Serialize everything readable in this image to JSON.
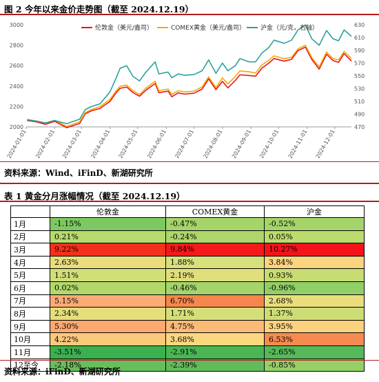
{
  "figure": {
    "title": "图 2  今年以来金价走势图（截至 2024.12.19）",
    "source": "资料来源：Wind、iFinD、新湖研究所"
  },
  "chart_data": {
    "type": "line",
    "x_ticks": [
      "2024-01-01",
      "2024-02-01",
      "2024-03-01",
      "2024-04-01",
      "2024-05-01",
      "2024-06-01",
      "2024-07-01",
      "2024-08-01",
      "2024-09-01",
      "2024-10-01",
      "2024-11-01",
      "2024-12-01"
    ],
    "left_axis": {
      "min": 2000,
      "max": 3000,
      "ticks": [
        2000,
        2200,
        2400,
        2600,
        2800,
        3000
      ]
    },
    "right_axis": {
      "min": 470,
      "max": 630,
      "ticks": [
        470,
        490,
        510,
        530,
        550,
        570,
        590,
        610,
        630
      ]
    },
    "x_range": [
      "2024-01-01",
      "2024-12-19"
    ],
    "grid": false,
    "legend_position": "top",
    "series": [
      {
        "name": "伦敦金（美元/盎司）",
        "color": "#e8141c",
        "axis": "left",
        "points": [
          [
            "2024-01-02",
            2063
          ],
          [
            "2024-01-12",
            2049
          ],
          [
            "2024-01-22",
            2025
          ],
          [
            "2024-02-01",
            2054
          ],
          [
            "2024-02-14",
            1992
          ],
          [
            "2024-02-28",
            2034
          ],
          [
            "2024-03-05",
            2127
          ],
          [
            "2024-03-12",
            2158
          ],
          [
            "2024-03-21",
            2180
          ],
          [
            "2024-04-01",
            2251
          ],
          [
            "2024-04-08",
            2339
          ],
          [
            "2024-04-12",
            2378
          ],
          [
            "2024-04-19",
            2391
          ],
          [
            "2024-04-26",
            2335
          ],
          [
            "2024-05-03",
            2301
          ],
          [
            "2024-05-10",
            2360
          ],
          [
            "2024-05-20",
            2425
          ],
          [
            "2024-05-24",
            2335
          ],
          [
            "2024-06-03",
            2350
          ],
          [
            "2024-06-07",
            2295
          ],
          [
            "2024-06-14",
            2333
          ],
          [
            "2024-06-21",
            2321
          ],
          [
            "2024-07-01",
            2330
          ],
          [
            "2024-07-10",
            2371
          ],
          [
            "2024-07-17",
            2470
          ],
          [
            "2024-07-25",
            2365
          ],
          [
            "2024-08-01",
            2446
          ],
          [
            "2024-08-07",
            2382
          ],
          [
            "2024-08-15",
            2456
          ],
          [
            "2024-08-20",
            2510
          ],
          [
            "2024-08-30",
            2503
          ],
          [
            "2024-09-06",
            2497
          ],
          [
            "2024-09-13",
            2578
          ],
          [
            "2024-09-20",
            2622
          ],
          [
            "2024-09-26",
            2670
          ],
          [
            "2024-10-07",
            2644
          ],
          [
            "2024-10-15",
            2662
          ],
          [
            "2024-10-22",
            2747
          ],
          [
            "2024-10-30",
            2782
          ],
          [
            "2024-11-06",
            2660
          ],
          [
            "2024-11-14",
            2566
          ],
          [
            "2024-11-22",
            2712
          ],
          [
            "2024-11-29",
            2650
          ],
          [
            "2024-12-05",
            2632
          ],
          [
            "2024-12-11",
            2718
          ],
          [
            "2024-12-19",
            2645
          ]
        ]
      },
      {
        "name": "COMEX黄金（美元/盎司）",
        "color": "#f5a800",
        "axis": "left",
        "points": [
          [
            "2024-01-02",
            2073
          ],
          [
            "2024-01-12",
            2058
          ],
          [
            "2024-01-22",
            2040
          ],
          [
            "2024-02-01",
            2065
          ],
          [
            "2024-02-14",
            2005
          ],
          [
            "2024-02-28",
            2050
          ],
          [
            "2024-03-05",
            2140
          ],
          [
            "2024-03-12",
            2170
          ],
          [
            "2024-03-21",
            2198
          ],
          [
            "2024-04-01",
            2270
          ],
          [
            "2024-04-08",
            2358
          ],
          [
            "2024-04-12",
            2397
          ],
          [
            "2024-04-19",
            2410
          ],
          [
            "2024-04-26",
            2354
          ],
          [
            "2024-05-03",
            2318
          ],
          [
            "2024-05-10",
            2380
          ],
          [
            "2024-05-20",
            2447
          ],
          [
            "2024-05-24",
            2354
          ],
          [
            "2024-06-03",
            2370
          ],
          [
            "2024-06-07",
            2318
          ],
          [
            "2024-06-14",
            2355
          ],
          [
            "2024-06-21",
            2342
          ],
          [
            "2024-07-01",
            2350
          ],
          [
            "2024-07-10",
            2392
          ],
          [
            "2024-07-17",
            2490
          ],
          [
            "2024-07-25",
            2385
          ],
          [
            "2024-08-01",
            2480
          ],
          [
            "2024-08-07",
            2420
          ],
          [
            "2024-08-15",
            2494
          ],
          [
            "2024-08-20",
            2548
          ],
          [
            "2024-08-30",
            2540
          ],
          [
            "2024-09-06",
            2528
          ],
          [
            "2024-09-13",
            2608
          ],
          [
            "2024-09-20",
            2650
          ],
          [
            "2024-09-26",
            2696
          ],
          [
            "2024-10-07",
            2668
          ],
          [
            "2024-10-15",
            2681
          ],
          [
            "2024-10-22",
            2765
          ],
          [
            "2024-10-30",
            2800
          ],
          [
            "2024-11-06",
            2680
          ],
          [
            "2024-11-14",
            2587
          ],
          [
            "2024-11-22",
            2733
          ],
          [
            "2024-11-29",
            2670
          ],
          [
            "2024-12-05",
            2656
          ],
          [
            "2024-12-11",
            2740
          ],
          [
            "2024-12-19",
            2670
          ]
        ]
      },
      {
        "name": "沪金（元/克，右轴）",
        "color": "#2aa19c",
        "axis": "right",
        "points": [
          [
            "2024-01-02",
            481
          ],
          [
            "2024-01-12",
            479
          ],
          [
            "2024-01-22",
            476
          ],
          [
            "2024-02-01",
            480
          ],
          [
            "2024-02-14",
            475
          ],
          [
            "2024-02-28",
            482
          ],
          [
            "2024-03-05",
            497
          ],
          [
            "2024-03-12",
            502
          ],
          [
            "2024-03-21",
            506
          ],
          [
            "2024-04-01",
            525
          ],
          [
            "2024-04-08",
            548
          ],
          [
            "2024-04-12",
            562
          ],
          [
            "2024-04-19",
            566
          ],
          [
            "2024-04-26",
            549
          ],
          [
            "2024-05-03",
            542
          ],
          [
            "2024-05-10",
            556
          ],
          [
            "2024-05-20",
            572
          ],
          [
            "2024-05-24",
            553
          ],
          [
            "2024-06-03",
            556
          ],
          [
            "2024-06-07",
            547
          ],
          [
            "2024-06-14",
            553
          ],
          [
            "2024-06-21",
            551
          ],
          [
            "2024-07-01",
            552
          ],
          [
            "2024-07-10",
            558
          ],
          [
            "2024-07-17",
            575
          ],
          [
            "2024-07-25",
            554
          ],
          [
            "2024-08-01",
            570
          ],
          [
            "2024-08-07",
            558
          ],
          [
            "2024-08-15",
            566
          ],
          [
            "2024-08-20",
            577
          ],
          [
            "2024-08-30",
            572
          ],
          [
            "2024-09-06",
            572
          ],
          [
            "2024-09-13",
            586
          ],
          [
            "2024-09-20",
            594
          ],
          [
            "2024-09-26",
            606
          ],
          [
            "2024-10-07",
            601
          ],
          [
            "2024-10-15",
            606
          ],
          [
            "2024-10-22",
            622
          ],
          [
            "2024-10-30",
            630
          ],
          [
            "2024-11-06",
            608
          ],
          [
            "2024-11-14",
            598
          ],
          [
            "2024-11-22",
            621
          ],
          [
            "2024-11-29",
            608
          ],
          [
            "2024-12-05",
            605
          ],
          [
            "2024-12-11",
            622
          ],
          [
            "2024-12-19",
            612
          ]
        ]
      }
    ]
  },
  "table": {
    "title": "表 1  黄金分月涨幅情况（截至 2024.12.19）",
    "source": "资料来源：iFinD、新湖研究所",
    "headers": [
      "",
      "伦敦金",
      "COMEX黄金",
      "沪金"
    ],
    "rows": [
      {
        "label": "1月",
        "values": [
          "-1.15%",
          "-0.47%",
          "-0.52%"
        ],
        "colors": [
          "#7dc862",
          "#a4d46a",
          "#a4d46a"
        ]
      },
      {
        "label": "2月",
        "values": [
          "0.21%",
          "-0.24%",
          "0.05%"
        ],
        "colors": [
          "#b6da6c",
          "#aed66b",
          "#bcdb6d"
        ]
      },
      {
        "label": "3月",
        "values": [
          "9.22%",
          "9.84%",
          "10.27%"
        ],
        "colors": [
          "#f4301c",
          "#f4191a",
          "#f4131b"
        ]
      },
      {
        "label": "4月",
        "values": [
          "2.63%",
          "1.88%",
          "3.84%"
        ],
        "colors": [
          "#eadd7c",
          "#d8e07b",
          "#fbd47f"
        ]
      },
      {
        "label": "5月",
        "values": [
          "1.51%",
          "2.19%",
          "0.93%"
        ],
        "colors": [
          "#d1df78",
          "#e1df7c",
          "#c8dc74"
        ]
      },
      {
        "label": "6月",
        "values": [
          "0.02%",
          "-0.46%",
          "-0.96%"
        ],
        "colors": [
          "#b2d86c",
          "#a4d46a",
          "#92cf66"
        ]
      },
      {
        "label": "7月",
        "values": [
          "5.15%",
          "6.70%",
          "2.68%"
        ],
        "colors": [
          "#fbac76",
          "#f5864e",
          "#eadd7c"
        ]
      },
      {
        "label": "8月",
        "values": [
          "2.34%",
          "1.71%",
          "1.37%"
        ],
        "colors": [
          "#e4de7c",
          "#d5df79",
          "#cddd76"
        ]
      },
      {
        "label": "9月",
        "values": [
          "5.30%",
          "4.75%",
          "3.95%"
        ],
        "colors": [
          "#fba970",
          "#fbbb78",
          "#fbd27e"
        ]
      },
      {
        "label": "10月",
        "values": [
          "4.22%",
          "3.68%",
          "6.53%"
        ],
        "colors": [
          "#fbc97c",
          "#fbd780",
          "#f68a50"
        ]
      },
      {
        "label": "11月",
        "values": [
          "-3.51%",
          "-2.91%",
          "-2.65%"
        ],
        "colors": [
          "#3bb04e",
          "#4bb554",
          "#56b858"
        ]
      },
      {
        "label": "12至今",
        "values": [
          "-2.18%",
          "-2.39%",
          "-0.85%"
        ],
        "colors": [
          "#68bd5c",
          "#62bb5a",
          "#95d067"
        ]
      }
    ]
  }
}
